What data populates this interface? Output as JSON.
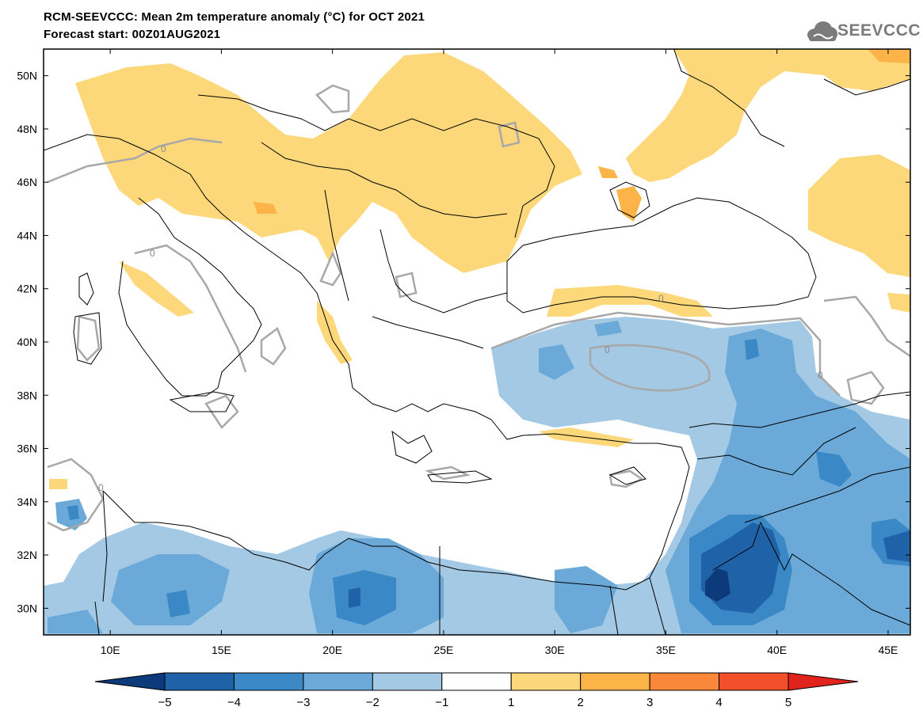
{
  "header": {
    "title_line1": "RCM-SEEVCCC: Mean 2m temperature anomaly (°C) for OCT 2021",
    "title_line2": "Forecast start: 00Z01AUG2021"
  },
  "logo": {
    "text": "SEEVCCC",
    "icon": "cloud-icon"
  },
  "map": {
    "lon_range": [
      7,
      46
    ],
    "lat_range": [
      29,
      51
    ],
    "lat_ticks": [
      {
        "value": 30,
        "label": "30N"
      },
      {
        "value": 32,
        "label": "32N"
      },
      {
        "value": 34,
        "label": "34N"
      },
      {
        "value": 36,
        "label": "36N"
      },
      {
        "value": 38,
        "label": "38N"
      },
      {
        "value": 40,
        "label": "40N"
      },
      {
        "value": 42,
        "label": "42N"
      },
      {
        "value": 44,
        "label": "44N"
      },
      {
        "value": 46,
        "label": "46N"
      },
      {
        "value": 48,
        "label": "48N"
      },
      {
        "value": 50,
        "label": "50N"
      }
    ],
    "lon_ticks": [
      {
        "value": 10,
        "label": "10E"
      },
      {
        "value": 15,
        "label": "15E"
      },
      {
        "value": 20,
        "label": "20E"
      },
      {
        "value": 25,
        "label": "25E"
      },
      {
        "value": 30,
        "label": "30E"
      },
      {
        "value": 35,
        "label": "35E"
      },
      {
        "value": 40,
        "label": "40E"
      },
      {
        "value": 45,
        "label": "45E"
      }
    ],
    "zero_contour_label": "0"
  },
  "colorbar": {
    "labels": [
      "−5",
      "−4",
      "−3",
      "−2",
      "−1",
      "1",
      "2",
      "3",
      "4",
      "5"
    ],
    "colors": [
      "#0d3a7a",
      "#1f62a7",
      "#3b88c6",
      "#6aa9d8",
      "#a3c9e5",
      "#ffffff",
      "#fdd87a",
      "#fcb347",
      "#fb873a",
      "#f24f2b",
      "#e0231c"
    ]
  }
}
